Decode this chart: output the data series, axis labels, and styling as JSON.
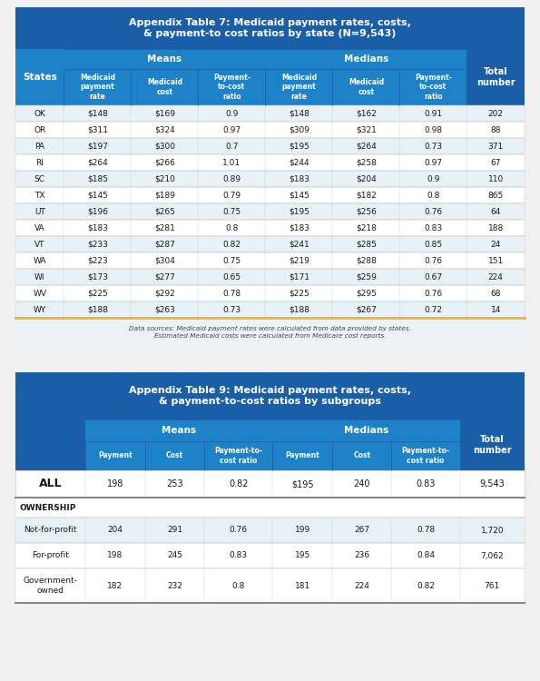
{
  "table7": {
    "title": "Appendix Table 7: Medicaid payment rates, costs,\n& payment-to cost ratios by state (N=9,543)",
    "states": [
      "OK",
      "OR",
      "PA",
      "RI",
      "SC",
      "TX",
      "UT",
      "VA",
      "VT",
      "WA",
      "WI",
      "WV",
      "WY"
    ],
    "means_payment": [
      "$148",
      "$311",
      "$197",
      "$264",
      "$185",
      "$145",
      "$196",
      "$183",
      "$233",
      "$223",
      "$173",
      "$225",
      "$188"
    ],
    "means_cost": [
      "$169",
      "$324",
      "$300",
      "$266",
      "$210",
      "$189",
      "$265",
      "$281",
      "$287",
      "$304",
      "$277",
      "$292",
      "$263"
    ],
    "means_ratio": [
      "0.9",
      "0.97",
      "0.7",
      "1.01",
      "0.89",
      "0.79",
      "0.75",
      "0.8",
      "0.82",
      "0.75",
      "0.65",
      "0.78",
      "0.73"
    ],
    "medians_payment": [
      "$148",
      "$309",
      "$195",
      "$244",
      "$183",
      "$145",
      "$195",
      "$183",
      "$241",
      "$219",
      "$171",
      "$225",
      "$188"
    ],
    "medians_cost": [
      "$162",
      "$321",
      "$264",
      "$258",
      "$204",
      "$182",
      "$256",
      "$218",
      "$285",
      "$288",
      "$259",
      "$295",
      "$267"
    ],
    "medians_ratio": [
      "0.91",
      "0.98",
      "0.73",
      "0.97",
      "0.9",
      "0.8",
      "0.76",
      "0.83",
      "0.85",
      "0.76",
      "0.67",
      "0.76",
      "0.72"
    ],
    "total": [
      "202",
      "88",
      "371",
      "67",
      "110",
      "865",
      "64",
      "188",
      "24",
      "151",
      "224",
      "68",
      "14"
    ],
    "footnote1": "Data sources: Medicaid payment rates were calculated from data provided by states.",
    "footnote2": "Estimated Medicaid costs were calculated from Medicare cost reports."
  },
  "table9": {
    "title": "Appendix Table 9: Medicaid payment rates, costs,\n& payment-to-cost ratios by subgroups",
    "rows": [
      {
        "label": "ALL",
        "means_payment": "198",
        "means_cost": "253",
        "means_ratio": "0.82",
        "medians_payment": "$195",
        "medians_cost": "240",
        "medians_ratio": "0.83",
        "total": "9,543",
        "bold": true,
        "section": false
      },
      {
        "label": "OWNERSHIP",
        "section": true
      },
      {
        "label": "Not-for-profit",
        "means_payment": "204",
        "means_cost": "291",
        "means_ratio": "0.76",
        "medians_payment": "199",
        "medians_cost": "267",
        "medians_ratio": "0.78",
        "total": "1,720",
        "bold": false,
        "section": false
      },
      {
        "label": "For-profit",
        "means_payment": "198",
        "means_cost": "245",
        "means_ratio": "0.83",
        "medians_payment": "195",
        "medians_cost": "236",
        "medians_ratio": "0.84",
        "total": "7,062",
        "bold": false,
        "section": false
      },
      {
        "label": "Government-\nowned",
        "means_payment": "182",
        "means_cost": "232",
        "means_ratio": "0.8",
        "medians_payment": "181",
        "medians_cost": "224",
        "medians_ratio": "0.82",
        "total": "761",
        "bold": false,
        "section": false
      }
    ]
  },
  "DARK_BLUE": "#1b5ea8",
  "MED_BLUE": "#1e82c8",
  "GOLD": "#f0b429",
  "WHITE": "#ffffff",
  "DARK_TEXT": "#1a1a1a",
  "EVEN_ROW": "#e8f0f8",
  "ODD_ROW": "#ffffff",
  "BG": "#f0f0f0"
}
